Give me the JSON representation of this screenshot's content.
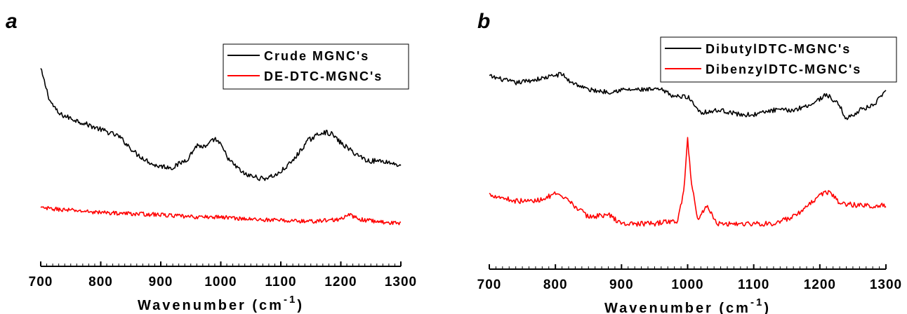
{
  "chart_data": [
    {
      "type": "line",
      "panel": "a",
      "xlabel": "Wavenumber (cm",
      "xlabel_sup": "-1",
      "xlabel_tail": ")",
      "xlim": [
        700,
        1300
      ],
      "ylim": [
        0,
        100
      ],
      "yaxis_shown": false,
      "grid": false,
      "legend_position": "top-right",
      "x_ticks": [
        "700",
        "800",
        "900",
        "1000",
        "1100",
        "1200",
        "1300"
      ],
      "series": [
        {
          "name": "Crude MGNC's",
          "color": "#000000",
          "x": [
            700,
            715,
            730,
            760,
            800,
            830,
            860,
            890,
            920,
            945,
            960,
            975,
            990,
            1000,
            1015,
            1040,
            1070,
            1095,
            1120,
            1145,
            1170,
            1185,
            1200,
            1220,
            1245,
            1270,
            1300
          ],
          "y": [
            88,
            74,
            68,
            65,
            61,
            58,
            50,
            45,
            44,
            48,
            54,
            53,
            57,
            54,
            47,
            41,
            39,
            41,
            47,
            56,
            60,
            59,
            55,
            51,
            47,
            47,
            45
          ]
        },
        {
          "name": "DE-DTC-MGNC's",
          "color": "#ff0000",
          "x": [
            700,
            750,
            800,
            850,
            900,
            950,
            1000,
            1050,
            1100,
            1150,
            1200,
            1215,
            1230,
            1260,
            1300
          ],
          "y": [
            26,
            25,
            24,
            23.5,
            23,
            22,
            22,
            21,
            20.5,
            20,
            21,
            23,
            21,
            20,
            19
          ]
        }
      ]
    },
    {
      "type": "line",
      "panel": "b",
      "xlabel": "Wavenumber (cm",
      "xlabel_sup": "-1",
      "xlabel_tail": ")",
      "xlim": [
        700,
        1300
      ],
      "ylim": [
        0,
        100
      ],
      "yaxis_shown": false,
      "grid": false,
      "legend_position": "top-right",
      "x_ticks": [
        "700",
        "800",
        "900",
        "1000",
        "1100",
        "1200",
        "1300"
      ],
      "series": [
        {
          "name": "DibutylDTC-MGNC's",
          "color": "#000000",
          "x": [
            700,
            740,
            780,
            810,
            820,
            850,
            880,
            900,
            930,
            960,
            980,
            1000,
            1020,
            1050,
            1080,
            1100,
            1130,
            1160,
            1190,
            1210,
            1230,
            1240,
            1260,
            1280,
            1300
          ],
          "y": [
            85,
            82,
            84,
            86,
            83,
            79,
            78,
            79,
            79,
            79,
            76,
            76,
            69,
            70,
            68,
            68,
            70,
            70,
            73,
            77,
            72,
            66,
            70,
            72,
            78
          ]
        },
        {
          "name": "DibenzylDTC-MGNC's",
          "color": "#ff0000",
          "x": [
            700,
            740,
            770,
            800,
            820,
            850,
            880,
            900,
            920,
            950,
            970,
            985,
            995,
            1000,
            1005,
            1015,
            1030,
            1045,
            1070,
            1100,
            1130,
            1160,
            1180,
            1200,
            1215,
            1230,
            1260,
            1300
          ],
          "y": [
            33,
            30,
            30,
            33,
            30,
            23,
            24,
            20,
            20,
            20,
            21,
            21,
            36,
            58,
            40,
            22,
            28,
            20,
            20,
            20,
            20,
            23,
            27,
            33,
            34,
            29,
            28,
            28
          ]
        }
      ]
    }
  ]
}
